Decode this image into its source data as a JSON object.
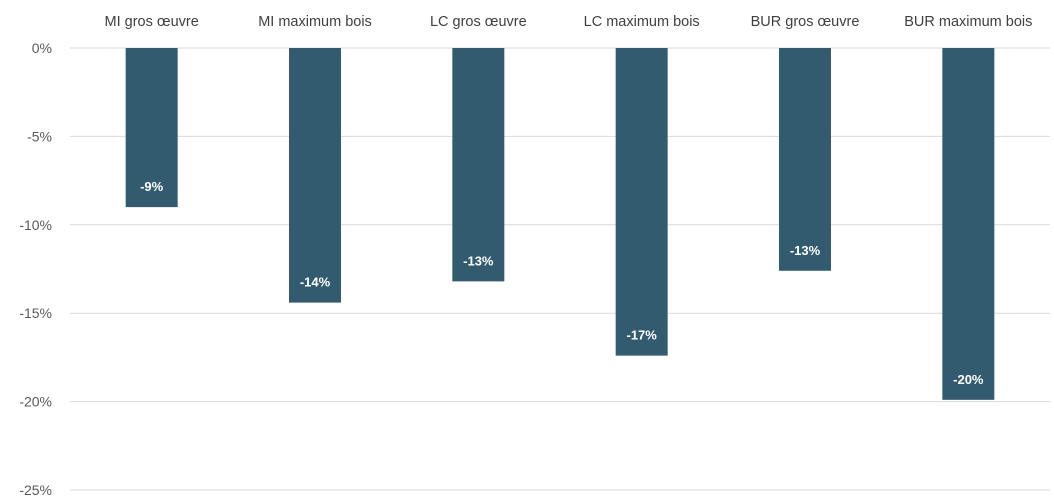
{
  "chart_data": {
    "type": "bar",
    "title": "",
    "xlabel": "",
    "ylabel": "",
    "categories": [
      "MI gros œuvre",
      "MI maximum bois",
      "LC gros œuvre",
      "LC maximum bois",
      "BUR gros œuvre",
      "BUR maximum bois"
    ],
    "values": [
      -9,
      -14.4,
      -13.2,
      -17.4,
      -12.6,
      -19.9
    ],
    "data_labels": [
      "-9%",
      "-14%",
      "-13%",
      "-17%",
      "-13%",
      "-20%"
    ],
    "yticks": [
      0,
      -5,
      -10,
      -15,
      -20,
      -25
    ],
    "ytick_labels": [
      "0%",
      "-5%",
      "-10%",
      "-15%",
      "-20%",
      "-25%"
    ],
    "ylim": [
      -25,
      0
    ],
    "grid": true,
    "bar_color": "#335b70",
    "grid_color": "#d9d9d9",
    "categories_position": "top"
  }
}
